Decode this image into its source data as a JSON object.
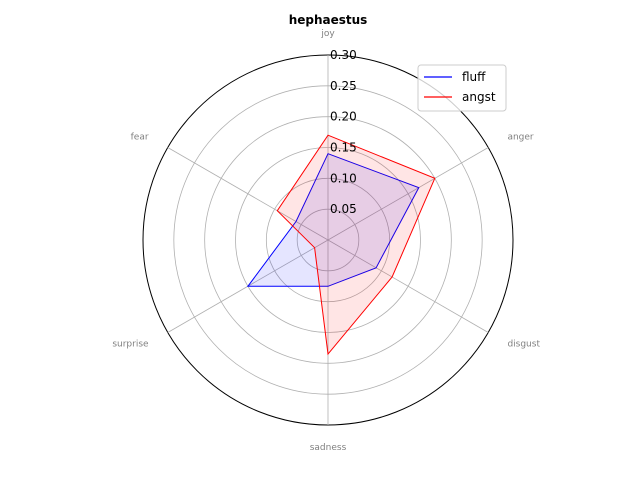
{
  "chart_data": {
    "type": "radar",
    "title": "hephaestus",
    "axes": [
      "joy",
      "anger",
      "disgust",
      "sadness",
      "surprise",
      "fear"
    ],
    "rlim": [
      0,
      0.3
    ],
    "rticks": [
      0.05,
      0.1,
      0.15,
      0.2,
      0.25,
      0.3
    ],
    "rtick_labels": [
      "0.05",
      "0.10",
      "0.15",
      "0.20",
      "0.25",
      "0.30"
    ],
    "grid": true,
    "legend_position": "top-right",
    "series": [
      {
        "name": "fluff",
        "color": "#0000ff",
        "values": [
          0.14,
          0.17,
          0.09,
          0.075,
          0.15,
          0.06
        ]
      },
      {
        "name": "angst",
        "color": "#ff0000",
        "values": [
          0.17,
          0.2,
          0.12,
          0.185,
          0.025,
          0.095
        ]
      }
    ]
  }
}
